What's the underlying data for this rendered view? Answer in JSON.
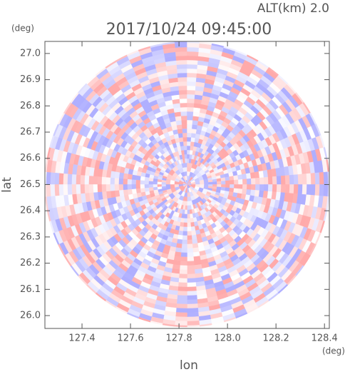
{
  "chart_data": {
    "type": "radar",
    "title": "2017/10/24 09:45:00",
    "annotation": "ALT(km) 2.0",
    "xlabel": "lon",
    "ylabel": "lat",
    "x_unit": "(deg)",
    "y_unit": "(deg)",
    "xlim": [
      127.247,
      128.42
    ],
    "ylim": [
      25.951,
      27.046
    ],
    "xticks": [
      {
        "value": 127.4,
        "label": "127.4"
      },
      {
        "value": 127.6,
        "label": "127.6"
      },
      {
        "value": 127.8,
        "label": "127.8"
      },
      {
        "value": 128.0,
        "label": "128.0"
      },
      {
        "value": 128.2,
        "label": "128.2"
      },
      {
        "value": 128.4,
        "label": "128.4"
      }
    ],
    "yticks": [
      {
        "value": 26.0,
        "label": "26.0"
      },
      26.1,
      26.2,
      26.3,
      26.4,
      26.5,
      26.6,
      26.7,
      26.8,
      26.9,
      {
        "value": 27.0,
        "label": "27.0"
      }
    ]
  }
}
